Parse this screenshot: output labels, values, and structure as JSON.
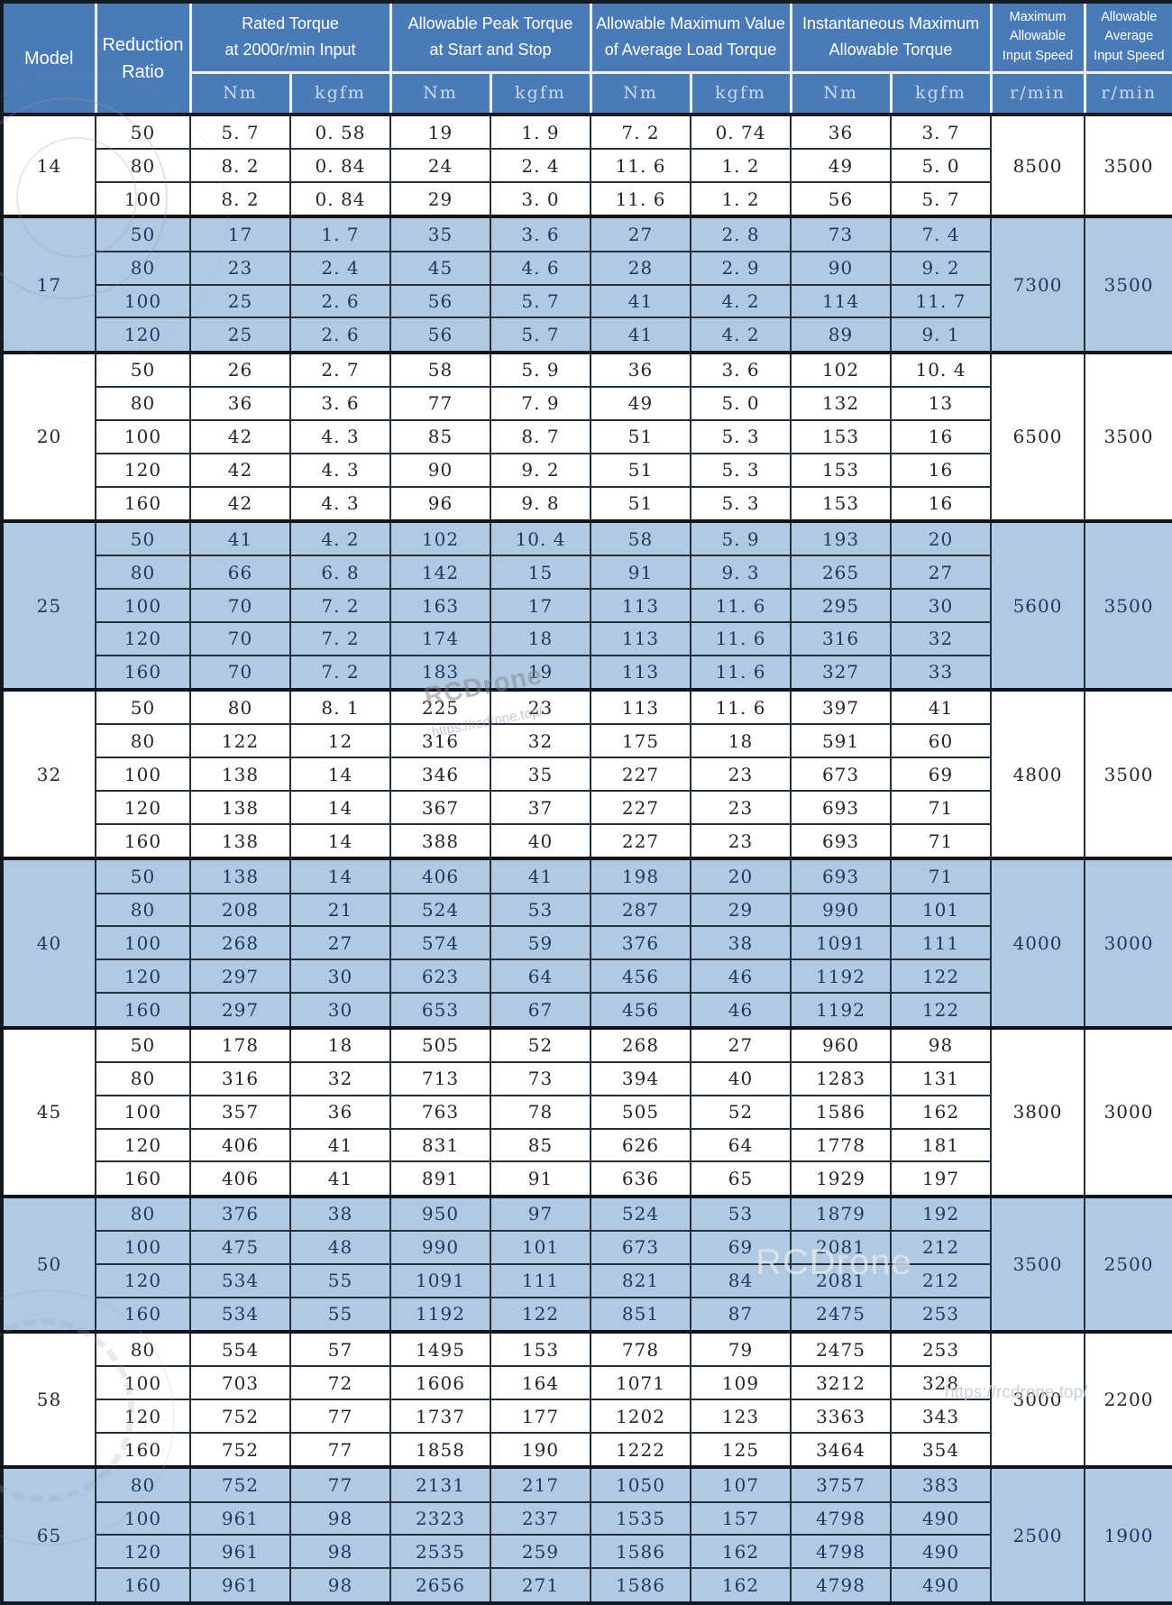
{
  "colors": {
    "header_bg": "#4a7ab7",
    "row_blue": "#b2c9e3",
    "row_white": "#ffffff",
    "text_dark": "#262626",
    "text_navy": "#1c3a60",
    "units_text": "#c9dbf2",
    "border_dark": "#141a22"
  },
  "header": {
    "model": "Model",
    "reduction_ratio": "Reduction\nRatio",
    "groups": [
      {
        "label": "Rated Torque\nat 2000r/min Input"
      },
      {
        "label": "Allowable Peak Torque\nat Start and Stop"
      },
      {
        "label": "Allowable Maximum Value\nof Average Load Torque"
      },
      {
        "label": "Instantaneous Maximum\nAllowable Torque"
      }
    ],
    "speed_cols": [
      {
        "label": "Maximum\nAllowable\nInput Speed",
        "unit": "r/min"
      },
      {
        "label": "Allowable\nAverage\nInput Speed",
        "unit": "r/min"
      }
    ],
    "units": {
      "nm": "Nm",
      "kgfm": "kgfm"
    }
  },
  "models": [
    {
      "model": "14",
      "tint": "white",
      "max_input_speed": "8500",
      "avg_input_speed": "3500",
      "rows": [
        [
          "50",
          "5. 7",
          "0. 58",
          "19",
          "1. 9",
          "7. 2",
          "0. 74",
          "36",
          "3. 7"
        ],
        [
          "80",
          "8. 2",
          "0. 84",
          "24",
          "2. 4",
          "11. 6",
          "1. 2",
          "49",
          "5. 0"
        ],
        [
          "100",
          "8. 2",
          "0. 84",
          "29",
          "3. 0",
          "11. 6",
          "1. 2",
          "56",
          "5. 7"
        ]
      ]
    },
    {
      "model": "17",
      "tint": "blue",
      "max_input_speed": "7300",
      "avg_input_speed": "3500",
      "rows": [
        [
          "50",
          "17",
          "1. 7",
          "35",
          "3. 6",
          "27",
          "2. 8",
          "73",
          "7. 4"
        ],
        [
          "80",
          "23",
          "2. 4",
          "45",
          "4. 6",
          "28",
          "2. 9",
          "90",
          "9. 2"
        ],
        [
          "100",
          "25",
          "2. 6",
          "56",
          "5. 7",
          "41",
          "4. 2",
          "114",
          "11. 7"
        ],
        [
          "120",
          "25",
          "2. 6",
          "56",
          "5. 7",
          "41",
          "4. 2",
          "89",
          "9. 1"
        ]
      ]
    },
    {
      "model": "20",
      "tint": "white",
      "max_input_speed": "6500",
      "avg_input_speed": "3500",
      "rows": [
        [
          "50",
          "26",
          "2. 7",
          "58",
          "5. 9",
          "36",
          "3. 6",
          "102",
          "10. 4"
        ],
        [
          "80",
          "36",
          "3. 6",
          "77",
          "7. 9",
          "49",
          "5. 0",
          "132",
          "13"
        ],
        [
          "100",
          "42",
          "4. 3",
          "85",
          "8. 7",
          "51",
          "5. 3",
          "153",
          "16"
        ],
        [
          "120",
          "42",
          "4. 3",
          "90",
          "9. 2",
          "51",
          "5. 3",
          "153",
          "16"
        ],
        [
          "160",
          "42",
          "4. 3",
          "96",
          "9. 8",
          "51",
          "5. 3",
          "153",
          "16"
        ]
      ]
    },
    {
      "model": "25",
      "tint": "blue",
      "max_input_speed": "5600",
      "avg_input_speed": "3500",
      "rows": [
        [
          "50",
          "41",
          "4. 2",
          "102",
          "10. 4",
          "58",
          "5. 9",
          "193",
          "20"
        ],
        [
          "80",
          "66",
          "6. 8",
          "142",
          "15",
          "91",
          "9. 3",
          "265",
          "27"
        ],
        [
          "100",
          "70",
          "7. 2",
          "163",
          "17",
          "113",
          "11. 6",
          "295",
          "30"
        ],
        [
          "120",
          "70",
          "7. 2",
          "174",
          "18",
          "113",
          "11. 6",
          "316",
          "32"
        ],
        [
          "160",
          "70",
          "7. 2",
          "183",
          "19",
          "113",
          "11. 6",
          "327",
          "33"
        ]
      ]
    },
    {
      "model": "32",
      "tint": "white",
      "max_input_speed": "4800",
      "avg_input_speed": "3500",
      "rows": [
        [
          "50",
          "80",
          "8. 1",
          "225",
          "23",
          "113",
          "11. 6",
          "397",
          "41"
        ],
        [
          "80",
          "122",
          "12",
          "316",
          "32",
          "175",
          "18",
          "591",
          "60"
        ],
        [
          "100",
          "138",
          "14",
          "346",
          "35",
          "227",
          "23",
          "673",
          "69"
        ],
        [
          "120",
          "138",
          "14",
          "367",
          "37",
          "227",
          "23",
          "693",
          "71"
        ],
        [
          "160",
          "138",
          "14",
          "388",
          "40",
          "227",
          "23",
          "693",
          "71"
        ]
      ]
    },
    {
      "model": "40",
      "tint": "blue",
      "max_input_speed": "4000",
      "avg_input_speed": "3000",
      "rows": [
        [
          "50",
          "138",
          "14",
          "406",
          "41",
          "198",
          "20",
          "693",
          "71"
        ],
        [
          "80",
          "208",
          "21",
          "524",
          "53",
          "287",
          "29",
          "990",
          "101"
        ],
        [
          "100",
          "268",
          "27",
          "574",
          "59",
          "376",
          "38",
          "1091",
          "111"
        ],
        [
          "120",
          "297",
          "30",
          "623",
          "64",
          "456",
          "46",
          "1192",
          "122"
        ],
        [
          "160",
          "297",
          "30",
          "653",
          "67",
          "456",
          "46",
          "1192",
          "122"
        ]
      ]
    },
    {
      "model": "45",
      "tint": "white",
      "max_input_speed": "3800",
      "avg_input_speed": "3000",
      "rows": [
        [
          "50",
          "178",
          "18",
          "505",
          "52",
          "268",
          "27",
          "960",
          "98"
        ],
        [
          "80",
          "316",
          "32",
          "713",
          "73",
          "394",
          "40",
          "1283",
          "131"
        ],
        [
          "100",
          "357",
          "36",
          "763",
          "78",
          "505",
          "52",
          "1586",
          "162"
        ],
        [
          "120",
          "406",
          "41",
          "831",
          "85",
          "626",
          "64",
          "1778",
          "181"
        ],
        [
          "160",
          "406",
          "41",
          "891",
          "91",
          "636",
          "65",
          "1929",
          "197"
        ]
      ]
    },
    {
      "model": "50",
      "tint": "blue",
      "max_input_speed": "3500",
      "avg_input_speed": "2500",
      "rows": [
        [
          "80",
          "376",
          "38",
          "950",
          "97",
          "524",
          "53",
          "1879",
          "192"
        ],
        [
          "100",
          "475",
          "48",
          "990",
          "101",
          "673",
          "69",
          "2081",
          "212"
        ],
        [
          "120",
          "534",
          "55",
          "1091",
          "111",
          "821",
          "84",
          "2081",
          "212"
        ],
        [
          "160",
          "534",
          "55",
          "1192",
          "122",
          "851",
          "87",
          "2475",
          "253"
        ]
      ]
    },
    {
      "model": "58",
      "tint": "white",
      "max_input_speed": "3000",
      "avg_input_speed": "2200",
      "rows": [
        [
          "80",
          "554",
          "57",
          "1495",
          "153",
          "778",
          "79",
          "2475",
          "253"
        ],
        [
          "100",
          "703",
          "72",
          "1606",
          "164",
          "1071",
          "109",
          "3212",
          "328"
        ],
        [
          "120",
          "752",
          "77",
          "1737",
          "177",
          "1202",
          "123",
          "3363",
          "343"
        ],
        [
          "160",
          "752",
          "77",
          "1858",
          "190",
          "1222",
          "125",
          "3464",
          "354"
        ]
      ]
    },
    {
      "model": "65",
      "tint": "blue",
      "max_input_speed": "2500",
      "avg_input_speed": "1900",
      "rows": [
        [
          "80",
          "752",
          "77",
          "2131",
          "217",
          "1050",
          "107",
          "3757",
          "383"
        ],
        [
          "100",
          "961",
          "98",
          "2323",
          "237",
          "1535",
          "157",
          "4798",
          "490"
        ],
        [
          "120",
          "961",
          "98",
          "2535",
          "259",
          "1586",
          "162",
          "4798",
          "490"
        ],
        [
          "160",
          "961",
          "98",
          "2656",
          "271",
          "1586",
          "162",
          "4798",
          "490"
        ]
      ]
    }
  ],
  "watermarks": {
    "brand_center": "RCDrone",
    "url_center": "https://rcdrone.top/",
    "brand_bottom": "RCDrone",
    "url_bottom": "https://rcdrone.top/"
  }
}
